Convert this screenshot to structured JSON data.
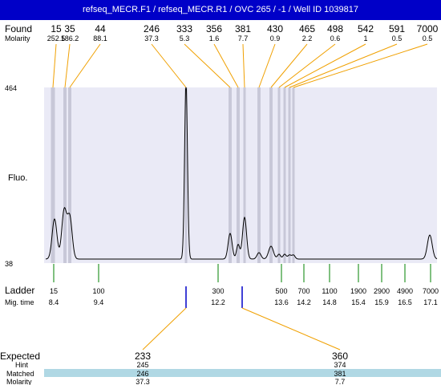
{
  "header": {
    "title": "refseq_MECR.F1 / refseq_MECR.R1 / OVC 265 / -1 / Well ID 1039817"
  },
  "labels": {
    "found": "Found",
    "molarity": "Molarity",
    "fluo": "Fluo.",
    "ladder": "Ladder",
    "mig_time": "Mig. time",
    "expected": "Expected",
    "hint": "Hint",
    "matched": "Matched",
    "molarity_bottom": "Molarity"
  },
  "colors": {
    "title_bg": "#0000c8",
    "plot_bg": "#eaeaf6",
    "found_band": "#c8c8d8",
    "found_line": "#f0a000",
    "ladder_tick": "#008000",
    "expected_marker": "#0000c8",
    "matched_row_bg": "#b0d8e4",
    "trace": "#000000"
  },
  "chart_data": {
    "type": "line",
    "ylim": [
      38,
      464
    ],
    "ytick_labels": [
      "464",
      "38"
    ],
    "ylabel": "Fluo.",
    "found_peaks": [
      {
        "size": "15",
        "molarity": "252.5"
      },
      {
        "size": "35",
        "molarity": "186.2"
      },
      {
        "size": "44",
        "molarity": "88.1"
      },
      {
        "size": "246",
        "molarity": "37.3"
      },
      {
        "size": "333",
        "molarity": "5.3"
      },
      {
        "size": "356",
        "molarity": "1.6"
      },
      {
        "size": "381",
        "molarity": "7.7"
      },
      {
        "size": "430",
        "molarity": "0.9"
      },
      {
        "size": "465",
        "molarity": "2.2"
      },
      {
        "size": "498",
        "molarity": "0.6"
      },
      {
        "size": "542",
        "molarity": "1"
      },
      {
        "size": "591",
        "molarity": "0.5"
      },
      {
        "size": "7000",
        "molarity": "0.5"
      }
    ],
    "ladder": [
      {
        "size": "15",
        "mig_time": "8.4"
      },
      {
        "size": "100",
        "mig_time": "9.4"
      },
      {
        "size": "300",
        "mig_time": "12.2"
      },
      {
        "size": "500",
        "mig_time": "13.6"
      },
      {
        "size": "700",
        "mig_time": "14.2"
      },
      {
        "size": "1100",
        "mig_time": "14.8"
      },
      {
        "size": "1900",
        "mig_time": "15.4"
      },
      {
        "size": "2900",
        "mig_time": "15.9"
      },
      {
        "size": "4900",
        "mig_time": "16.5"
      },
      {
        "size": "7000",
        "mig_time": "17.1"
      }
    ],
    "expected": [
      {
        "expected": "233",
        "hint": "245",
        "matched": "246",
        "molarity": "37.3"
      },
      {
        "expected": "360",
        "hint": "374",
        "matched": "381",
        "molarity": "7.7"
      }
    ]
  }
}
